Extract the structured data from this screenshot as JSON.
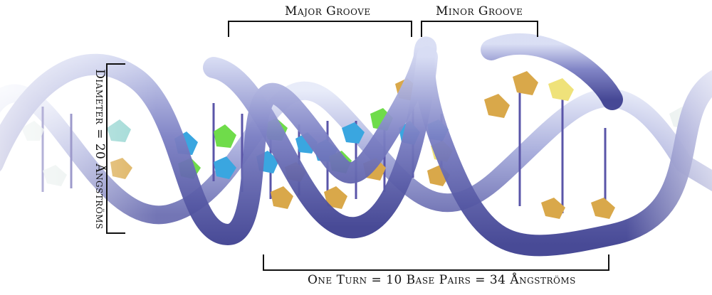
{
  "labels": {
    "major_groove": "Major Groove",
    "minor_groove": "Minor Groove",
    "one_turn": "One Turn = 10 Base Pairs = 34 Ångströms",
    "diameter": "Diameter = 20 Ångströms"
  },
  "colors": {
    "backbone": "#6f72b8",
    "backbone_light": "#c7cdea",
    "base_green": "#6fdc4a",
    "base_blue": "#3aa6e0",
    "base_gold": "#d9a84a",
    "base_yellow": "#efe27a",
    "bracket": "#111111"
  }
}
